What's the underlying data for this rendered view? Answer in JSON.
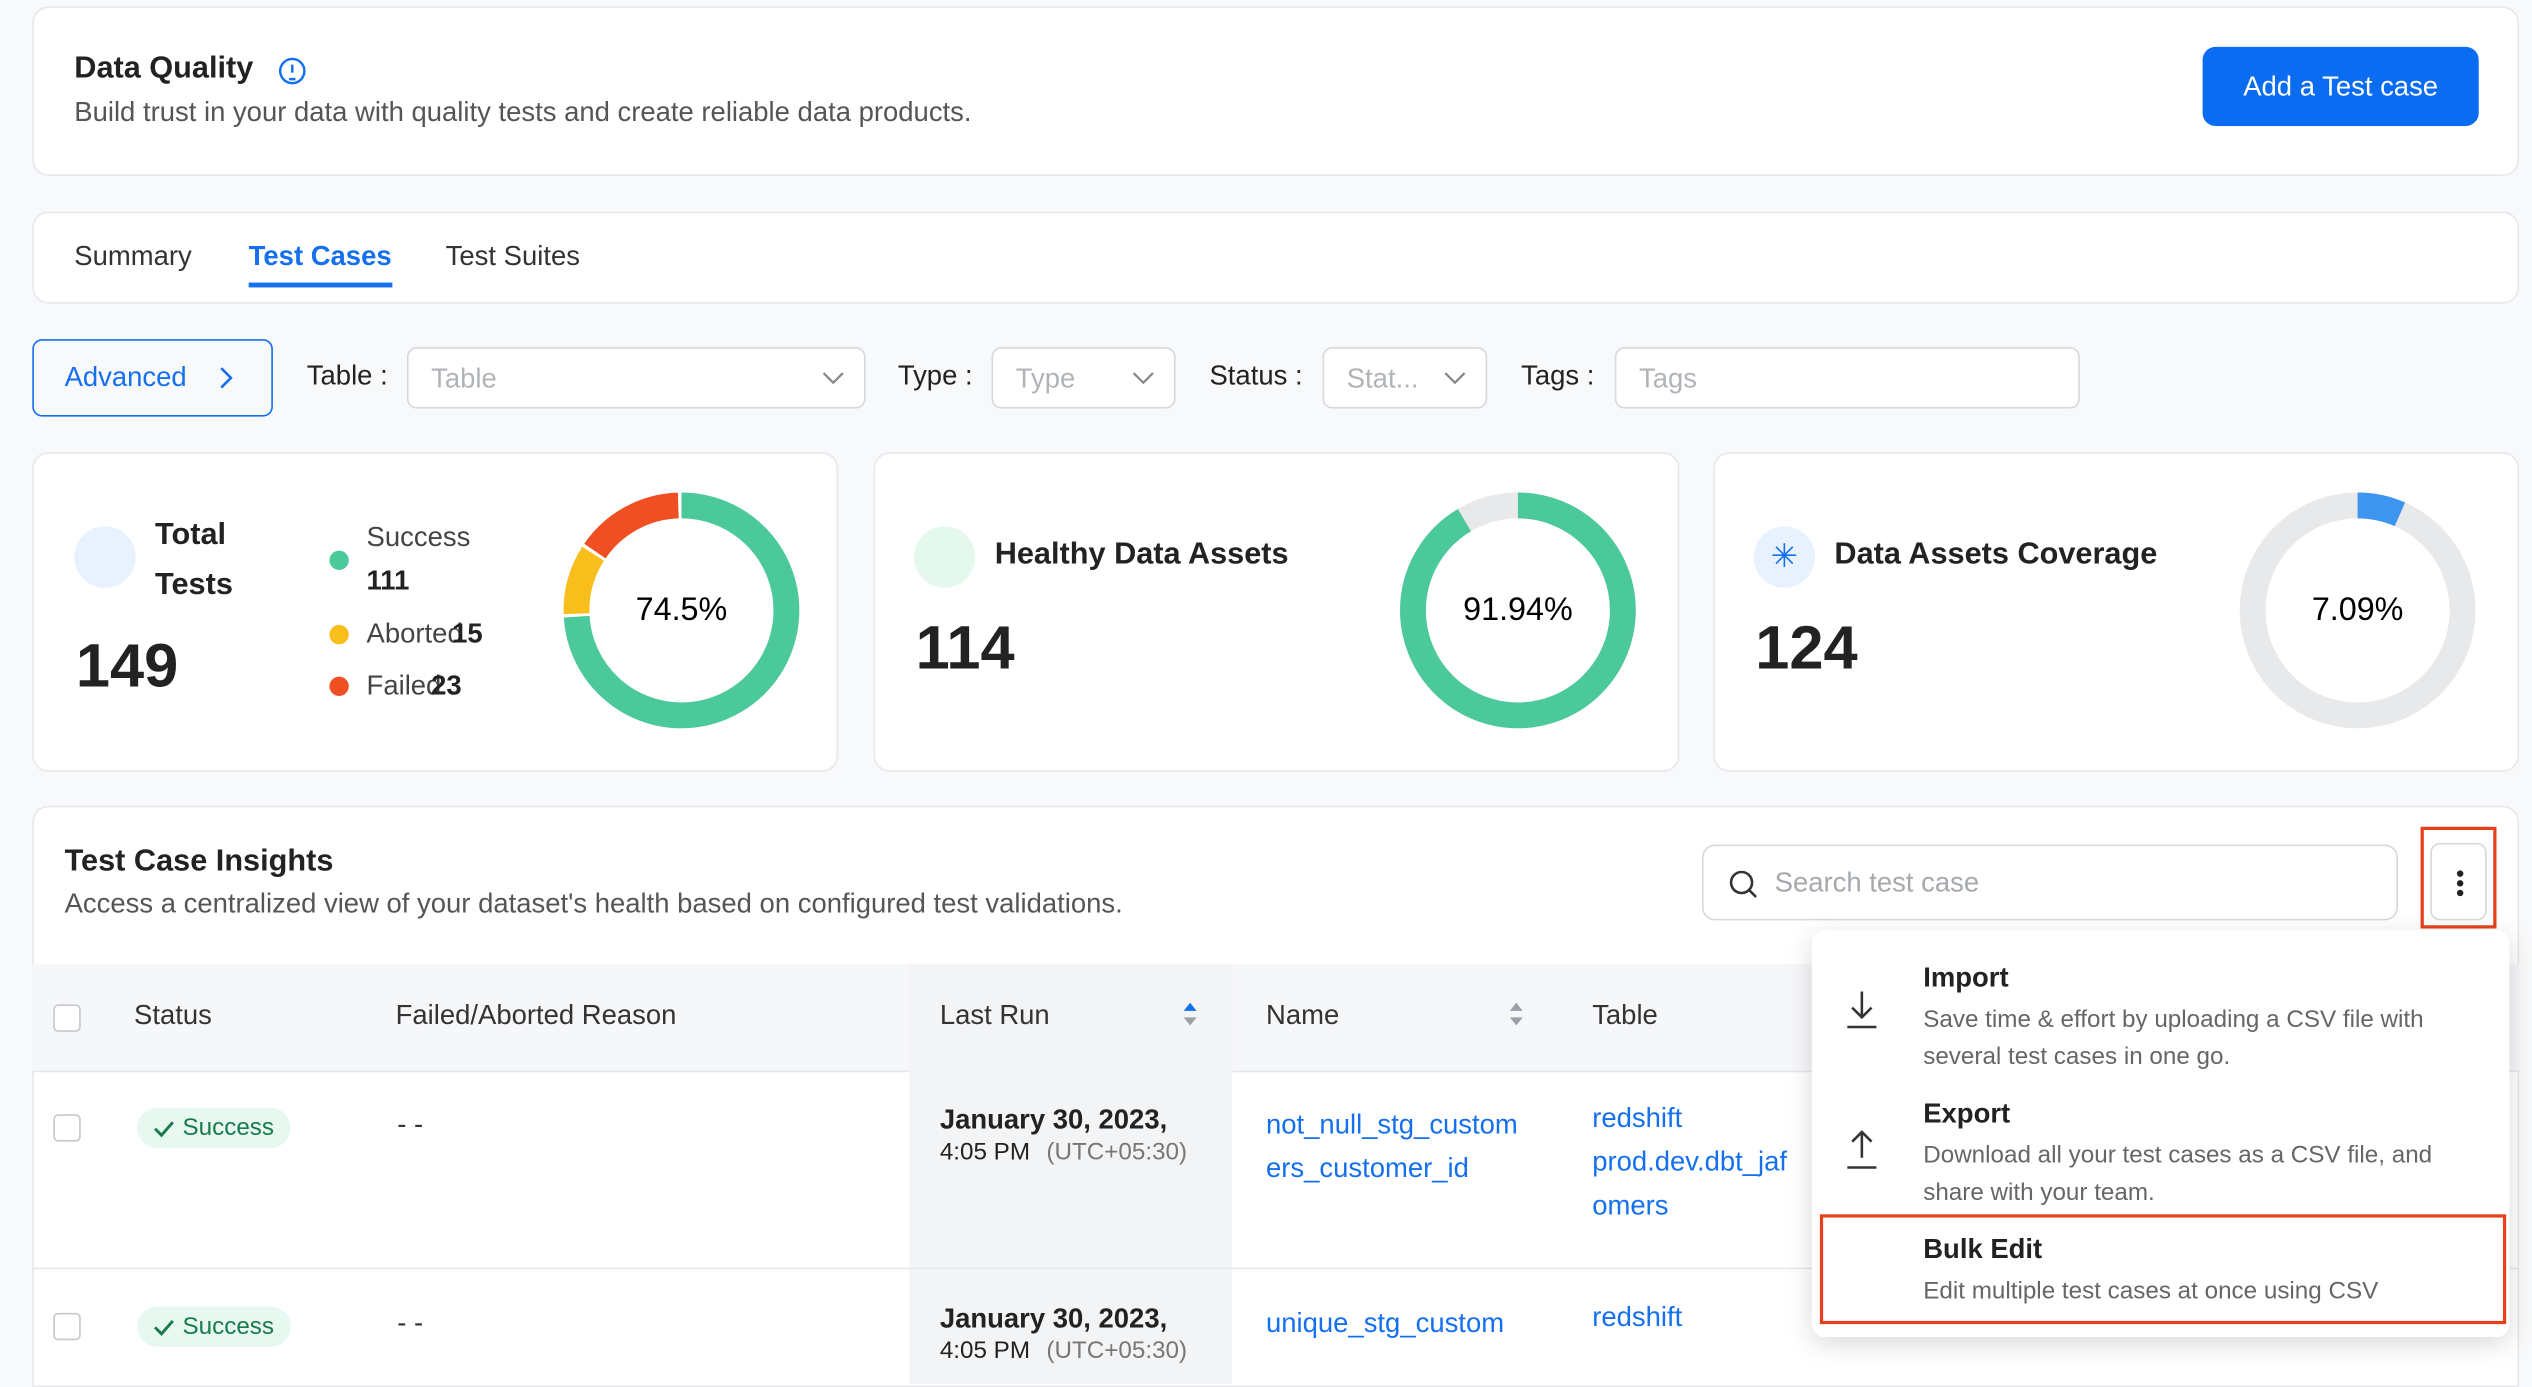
{
  "header": {
    "title": "Data Quality",
    "subtitle": "Build trust in your data with quality tests and create reliable data products.",
    "button": "Add a Test case"
  },
  "tabs": [
    "Summary",
    "Test Cases",
    "Test Suites"
  ],
  "filters": {
    "advanced": "Advanced",
    "fields": [
      {
        "label": "Table",
        "placeholder": "Table"
      },
      {
        "label": "Type",
        "placeholder": "Type"
      },
      {
        "label": "Status",
        "placeholder": "Stat..."
      },
      {
        "label": "Tags",
        "placeholder": "Tags"
      }
    ]
  },
  "cards": {
    "total": {
      "title": "Total Tests",
      "value": "149",
      "center": "74.5%",
      "legend": [
        {
          "name": "Success",
          "value": 111,
          "color": "#4cc99a"
        },
        {
          "name": "Aborted",
          "value": 15,
          "color": "#f8be1c"
        },
        {
          "name": "Failed",
          "value": 23,
          "color": "#f04f24"
        }
      ]
    },
    "healthy": {
      "title": "Healthy Data Assets",
      "value": "114",
      "percent": {
        "value": 91.94,
        "label": "91.94%"
      },
      "color": "#4cc99a"
    },
    "coverage": {
      "title": "Data Assets Coverage",
      "value": "124",
      "percent": {
        "value": 7.09,
        "label": "7.09%"
      },
      "color": "#3d95ef"
    }
  },
  "insights": {
    "title": "Test Case Insights",
    "subtitle": "Access a centralized view of your dataset's health based on configured test validations.",
    "search": "Search test case",
    "columns": [
      "Status",
      "Failed/Aborted Reason",
      "Last Run",
      "Name",
      "Table"
    ],
    "rows": [
      {
        "status": "Success",
        "reason": "- -",
        "date": "January 30, 2023,",
        "time": "4:05 PM",
        "tz": "(UTC+05:30)",
        "name": "not_null_stg_customers_customer_id",
        "table": [
          "redshift",
          "prod.dev.dbt_jaf",
          "omers"
        ]
      },
      {
        "status": "Success",
        "reason": "- -",
        "date": "January 30, 2023,",
        "time": "4:05 PM",
        "tz": "(UTC+05:30)",
        "name": "unique_stg_custom",
        "table": [
          "redshift"
        ]
      }
    ]
  },
  "menu": [
    {
      "title": "Import",
      "description": "Save time & effort by uploading a CSV file with several test cases in one go."
    },
    {
      "title": "Export",
      "description": "Download all your test cases as a CSV file, and share with your team."
    },
    {
      "title": "Bulk Edit",
      "description": "Edit multiple test cases at once using CSV"
    }
  ]
}
